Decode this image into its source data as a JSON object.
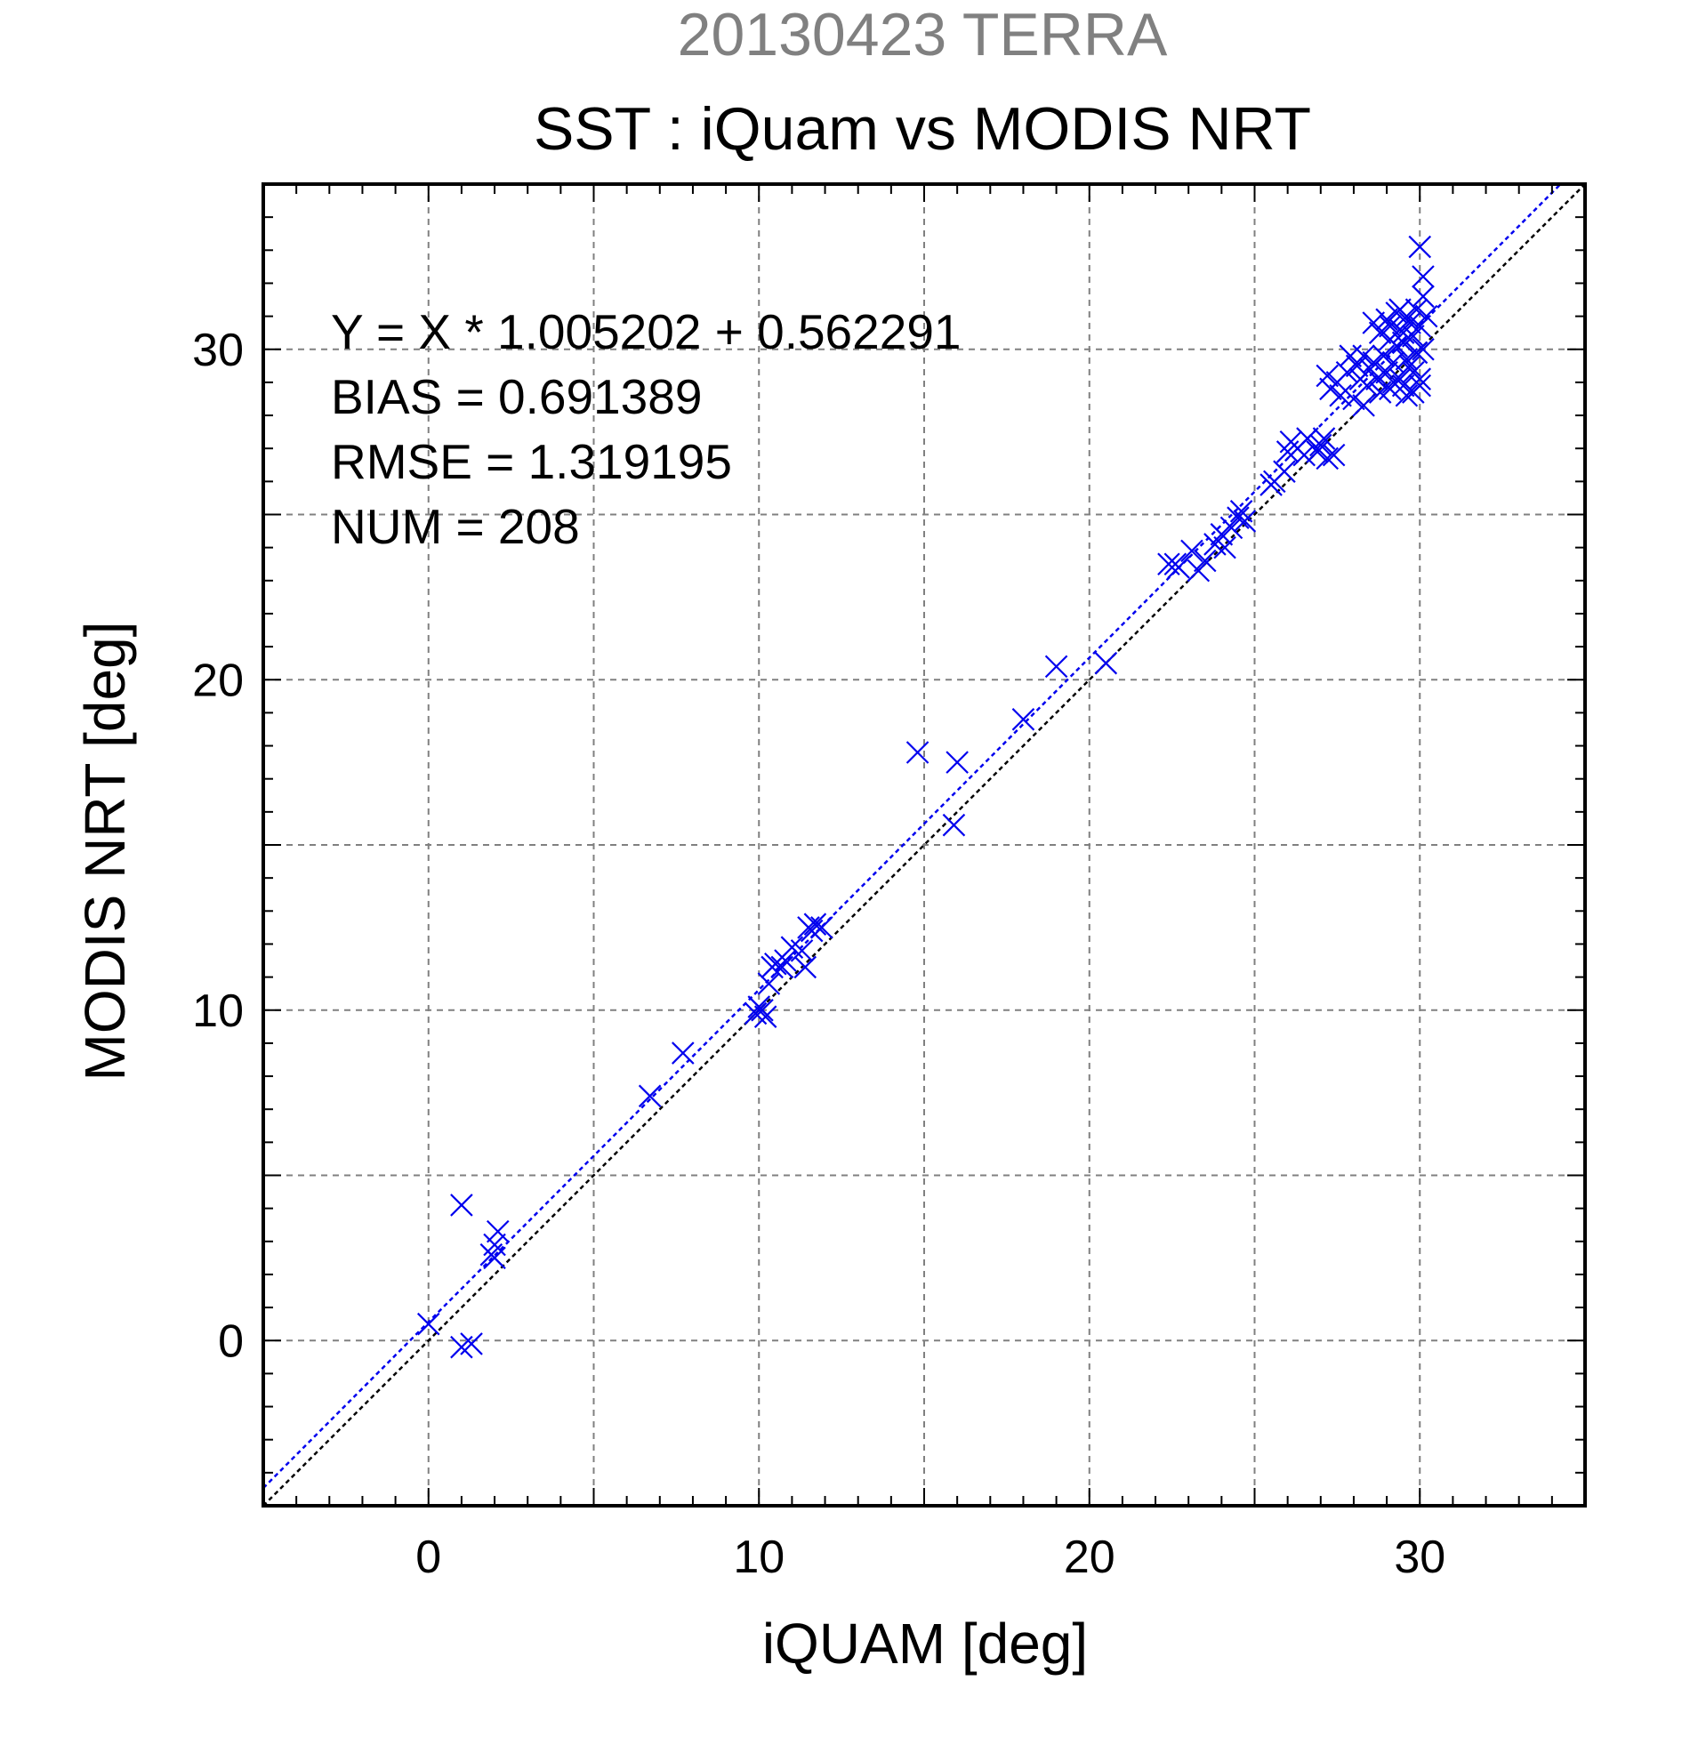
{
  "colors": {
    "supertitle": "#808080",
    "points": "#0000ee",
    "fit_line": "#0000ee",
    "identity_line": "#000000",
    "grid": "#808080"
  },
  "chart_data": {
    "type": "scatter",
    "supertitle": "20130423 TERRA",
    "title": "SST : iQuam vs MODIS NRT",
    "xlabel": "iQUAM [deg]",
    "ylabel": "MODIS NRT [deg]",
    "xlim": [
      -5,
      35
    ],
    "ylim": [
      -5,
      35
    ],
    "major_ticks": [
      0,
      10,
      20,
      30
    ],
    "grid_step": 5,
    "minor_tick_step": 1,
    "grid": true,
    "marker": "x",
    "annotations": [
      "Y = X * 1.005202 + 0.562291",
      "BIAS = 0.691389",
      "RMSE = 1.319195",
      "NUM = 208"
    ],
    "fit_line": {
      "slope": 1.005202,
      "intercept": 0.562291
    },
    "identity_line": {
      "slope": 1,
      "intercept": 0
    },
    "points": [
      [
        0.0,
        0.5
      ],
      [
        1.0,
        4.1
      ],
      [
        1.0,
        -0.2
      ],
      [
        1.3,
        -0.1
      ],
      [
        1.9,
        2.6
      ],
      [
        2.0,
        2.9
      ],
      [
        2.1,
        3.3
      ],
      [
        2.0,
        2.5
      ],
      [
        6.7,
        7.4
      ],
      [
        7.7,
        8.7
      ],
      [
        9.9,
        9.9
      ],
      [
        10.0,
        10.1
      ],
      [
        10.1,
        10.0
      ],
      [
        10.2,
        9.8
      ],
      [
        10.3,
        10.8
      ],
      [
        10.4,
        11.3
      ],
      [
        10.5,
        11.4
      ],
      [
        10.7,
        11.3
      ],
      [
        10.8,
        11.5
      ],
      [
        11.0,
        11.9
      ],
      [
        11.3,
        11.8
      ],
      [
        11.4,
        11.3
      ],
      [
        11.5,
        12.5
      ],
      [
        11.6,
        12.4
      ],
      [
        11.7,
        12.6
      ],
      [
        11.9,
        12.5
      ],
      [
        14.8,
        17.8
      ],
      [
        15.9,
        15.6
      ],
      [
        16.0,
        17.5
      ],
      [
        18.0,
        18.8
      ],
      [
        19.0,
        20.4
      ],
      [
        20.5,
        20.5
      ],
      [
        22.4,
        23.5
      ],
      [
        22.6,
        23.5
      ],
      [
        22.7,
        23.4
      ],
      [
        23.1,
        23.9
      ],
      [
        23.3,
        23.3
      ],
      [
        23.5,
        23.6
      ],
      [
        23.8,
        24.1
      ],
      [
        24.0,
        24.4
      ],
      [
        24.1,
        24.0
      ],
      [
        24.3,
        24.6
      ],
      [
        24.5,
        24.9
      ],
      [
        24.6,
        25.1
      ],
      [
        24.7,
        24.8
      ],
      [
        25.5,
        25.9
      ],
      [
        25.6,
        26.0
      ],
      [
        25.9,
        26.3
      ],
      [
        26.0,
        26.9
      ],
      [
        26.1,
        27.2
      ],
      [
        26.3,
        27.0
      ],
      [
        26.5,
        26.8
      ],
      [
        26.6,
        27.3
      ],
      [
        26.9,
        26.9
      ],
      [
        27.0,
        27.1
      ],
      [
        27.2,
        26.7
      ],
      [
        27.4,
        26.8
      ],
      [
        27.1,
        27.3
      ],
      [
        27.3,
        28.8
      ],
      [
        27.2,
        29.2
      ],
      [
        27.5,
        29.0
      ],
      [
        27.6,
        28.6
      ],
      [
        27.8,
        29.3
      ],
      [
        27.9,
        29.8
      ],
      [
        28.0,
        28.5
      ],
      [
        28.1,
        29.5
      ],
      [
        28.2,
        29.1
      ],
      [
        28.3,
        28.3
      ],
      [
        28.3,
        29.8
      ],
      [
        28.4,
        28.9
      ],
      [
        28.5,
        29.4
      ],
      [
        28.6,
        29.6
      ],
      [
        28.7,
        29.1
      ],
      [
        28.8,
        28.7
      ],
      [
        28.8,
        30.5
      ],
      [
        28.9,
        29.8
      ],
      [
        29.0,
        30.9
      ],
      [
        29.0,
        29.3
      ],
      [
        29.1,
        28.8
      ],
      [
        29.1,
        30.3
      ],
      [
        29.2,
        29.6
      ],
      [
        29.3,
        30.1
      ],
      [
        29.3,
        31.1
      ],
      [
        29.4,
        29.1
      ],
      [
        29.4,
        30.6
      ],
      [
        29.5,
        28.9
      ],
      [
        29.5,
        30.2
      ],
      [
        29.6,
        29.7
      ],
      [
        29.6,
        31.0
      ],
      [
        29.7,
        30.8
      ],
      [
        29.7,
        29.5
      ],
      [
        29.8,
        30.4
      ],
      [
        29.8,
        28.7
      ],
      [
        29.9,
        29.9
      ],
      [
        29.9,
        31.2
      ],
      [
        30.0,
        30.7
      ],
      [
        30.0,
        29.1
      ],
      [
        30.1,
        31.6
      ],
      [
        30.0,
        33.1
      ],
      [
        30.1,
        32.2
      ],
      [
        30.2,
        31.0
      ],
      [
        29.2,
        29.0
      ],
      [
        29.4,
        31.2
      ],
      [
        29.6,
        28.6
      ],
      [
        30.0,
        28.9
      ],
      [
        28.6,
        30.8
      ],
      [
        29.5,
        30.5
      ],
      [
        29.8,
        29.3
      ],
      [
        30.1,
        30.0
      ],
      [
        29.1,
        30.7
      ]
    ]
  }
}
